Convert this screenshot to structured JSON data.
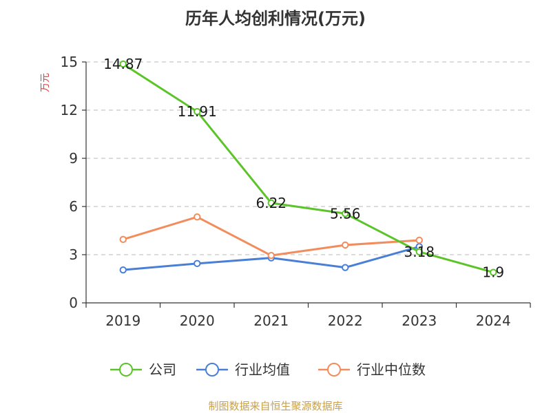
{
  "chart_data": {
    "type": "line",
    "title": "历年人均创利情况(万元)",
    "ylabel": "万元",
    "xlabel": "",
    "categories": [
      "2019",
      "2020",
      "2021",
      "2022",
      "2023",
      "2024"
    ],
    "ylim": [
      0,
      15
    ],
    "yticks": [
      0,
      3,
      6,
      9,
      12,
      15
    ],
    "grid": true,
    "legend_position": "bottom",
    "series": [
      {
        "name": "公司",
        "color": "#5bc428",
        "values": [
          14.87,
          11.91,
          6.22,
          5.56,
          3.18,
          1.9
        ],
        "labels": [
          "14.87",
          "11.91",
          "6.22",
          "5.56",
          "3.18",
          "1.9"
        ]
      },
      {
        "name": "行业均值",
        "color": "#4a7fd6",
        "values": [
          2.05,
          2.45,
          2.8,
          2.2,
          3.5,
          null
        ]
      },
      {
        "name": "行业中位数",
        "color": "#f28c5c",
        "values": [
          3.95,
          5.35,
          2.95,
          3.6,
          3.9,
          null
        ]
      }
    ]
  },
  "source": "制图数据来自恒生聚源数据库"
}
